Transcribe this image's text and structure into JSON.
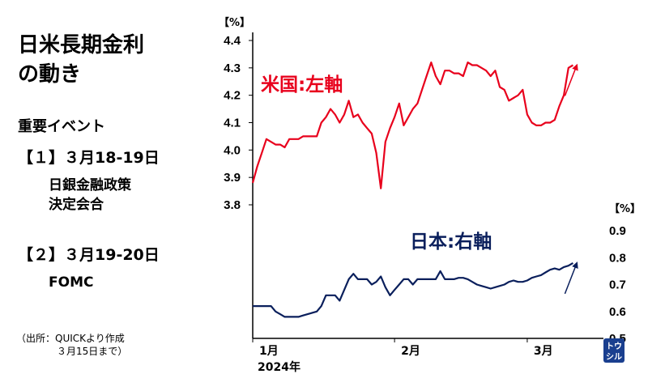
{
  "title": {
    "line1": "日米長期金利",
    "line2": "の動き"
  },
  "events": {
    "heading": "重要イベント",
    "items": [
      {
        "label": "【１】３月18-19日",
        "desc_line1": "日銀金融政策",
        "desc_line2": "決定会合"
      },
      {
        "label": "【２】３月19-20日",
        "desc_line1": "FOMC",
        "desc_line2": ""
      }
    ]
  },
  "source": {
    "line1": "（出所：QUICKより作成",
    "line2": "３月15日まで）"
  },
  "logo": {
    "line1": "トウ",
    "line2": "シル",
    "color": "#1a3f8f"
  },
  "chart_data": {
    "type": "line",
    "x_axis": {
      "labels": [
        "1月",
        "2月",
        "3月"
      ],
      "label_positions_day": [
        1,
        32,
        61
      ],
      "year_label": "2024年",
      "range_day": [
        1,
        75
      ]
    },
    "left_axis": {
      "unit": "【%】",
      "ticks": [
        "4.4",
        "4.3",
        "4.2",
        "4.1",
        "4.0",
        "3.9",
        "3.8"
      ],
      "range": [
        3.8,
        4.4
      ]
    },
    "right_axis": {
      "unit": "【%】",
      "ticks": [
        "0.9",
        "0.8",
        "0.7",
        "0.6",
        "0.5"
      ],
      "range": [
        0.5,
        0.9
      ]
    },
    "series": [
      {
        "name": "米国:左軸",
        "axis": "left",
        "color": "#e8001c",
        "x": [
          1,
          2,
          3,
          4,
          5,
          6,
          7,
          8,
          9,
          10,
          11,
          12,
          13,
          14,
          15,
          16,
          17,
          18,
          19,
          20,
          21,
          22,
          23,
          24,
          25,
          26,
          27,
          28,
          29,
          30,
          31,
          32,
          33,
          34,
          35,
          36,
          37,
          38,
          39,
          40,
          41,
          42,
          43,
          44,
          45,
          46,
          47,
          48,
          49,
          50,
          51,
          52,
          53,
          54,
          55,
          56,
          57,
          58,
          59,
          60,
          61,
          62,
          63,
          64,
          65,
          66,
          67,
          68,
          69,
          70,
          71,
          72,
          73,
          74
        ],
        "values": [
          3.88,
          3.94,
          3.99,
          4.04,
          4.03,
          4.02,
          4.02,
          4.01,
          4.04,
          4.04,
          4.04,
          4.05,
          4.05,
          4.05,
          4.05,
          4.1,
          4.12,
          4.15,
          4.13,
          4.1,
          4.13,
          4.18,
          4.12,
          4.13,
          4.1,
          4.08,
          4.06,
          3.99,
          3.86,
          4.03,
          4.08,
          4.12,
          4.17,
          4.09,
          4.12,
          4.15,
          4.17,
          4.22,
          4.27,
          4.32,
          4.27,
          4.24,
          4.29,
          4.29,
          4.28,
          4.28,
          4.27,
          4.32,
          4.31,
          4.31,
          4.3,
          4.29,
          4.27,
          4.29,
          4.23,
          4.22,
          4.18,
          4.19,
          4.2,
          4.22,
          4.13,
          4.1,
          4.09,
          4.09,
          4.1,
          4.1,
          4.11,
          4.16,
          4.2,
          4.3,
          4.31,
          null,
          null,
          null
        ]
      },
      {
        "name": "日本:右軸",
        "axis": "right",
        "color": "#0a1f5c",
        "x": [
          1,
          2,
          3,
          4,
          5,
          6,
          7,
          8,
          9,
          10,
          11,
          12,
          13,
          14,
          15,
          16,
          17,
          18,
          19,
          20,
          21,
          22,
          23,
          24,
          25,
          26,
          27,
          28,
          29,
          30,
          31,
          32,
          33,
          34,
          35,
          36,
          37,
          38,
          39,
          40,
          41,
          42,
          43,
          44,
          45,
          46,
          47,
          48,
          49,
          50,
          51,
          52,
          53,
          54,
          55,
          56,
          57,
          58,
          59,
          60,
          61,
          62,
          63,
          64,
          65,
          66,
          67,
          68,
          69,
          70,
          71,
          72,
          73,
          74
        ],
        "values": [
          0.62,
          0.62,
          0.62,
          0.62,
          0.62,
          0.6,
          0.59,
          0.58,
          0.58,
          0.58,
          0.58,
          0.585,
          0.59,
          0.595,
          0.6,
          0.62,
          0.66,
          0.66,
          0.66,
          0.64,
          0.68,
          0.72,
          0.74,
          0.72,
          0.72,
          0.72,
          0.7,
          0.71,
          0.73,
          0.69,
          0.66,
          0.68,
          0.7,
          0.72,
          0.72,
          0.7,
          0.72,
          0.72,
          0.72,
          0.72,
          0.72,
          0.75,
          0.72,
          0.72,
          0.72,
          0.725,
          0.725,
          0.72,
          0.71,
          0.7,
          0.695,
          0.69,
          0.685,
          0.69,
          0.695,
          0.7,
          0.71,
          0.715,
          0.71,
          0.71,
          0.715,
          0.725,
          0.73,
          0.735,
          0.745,
          0.755,
          0.76,
          0.755,
          0.765,
          0.77,
          0.78,
          null,
          null,
          null
        ]
      }
    ],
    "annotations": [
      {
        "series": "米国:左軸",
        "label_position": "upper-left",
        "arrow": "up"
      },
      {
        "series": "日本:右軸",
        "label_position": "above-line-right",
        "arrow": "up"
      }
    ],
    "grid": false
  }
}
